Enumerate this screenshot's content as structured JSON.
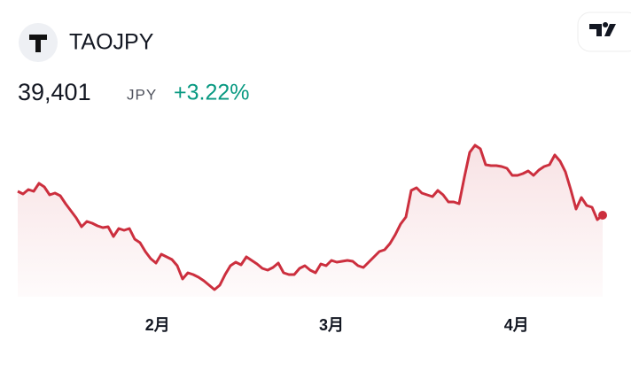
{
  "chart_data": {
    "type": "line",
    "title": "TAOJPY",
    "price": "39,401",
    "currency": "JPY",
    "change": "+3.22%",
    "series": [
      {
        "color": "#cc2f3e",
        "values": [
          43450,
          43000,
          43750,
          43450,
          44800,
          44200,
          42850,
          43150,
          42700,
          41350,
          40150,
          38950,
          37450,
          38350,
          38050,
          37600,
          37300,
          37450,
          35800,
          37150,
          36850,
          37150,
          35350,
          34750,
          33250,
          32050,
          31300,
          32800,
          32350,
          31900,
          30850,
          28600,
          29650,
          29350,
          28900,
          28300,
          27550,
          26800,
          27550,
          29350,
          30850,
          31450,
          31000,
          32350,
          31750,
          31150,
          30400,
          30100,
          30550,
          31300,
          29650,
          29350,
          29350,
          30400,
          30850,
          30100,
          29650,
          31150,
          30850,
          31750,
          31450,
          31600,
          31750,
          31600,
          30850,
          30550,
          31450,
          32350,
          33250,
          33550,
          34600,
          36100,
          37900,
          39100,
          43600,
          44050,
          43150,
          42850,
          42550,
          43600,
          42850,
          41650,
          41650,
          41350,
          45850,
          50050,
          51250,
          50650,
          47950,
          47800,
          47800,
          47650,
          47350,
          46150,
          46150,
          46450,
          46900,
          46150,
          47050,
          47650,
          47950,
          49600,
          48550,
          46750,
          43750,
          40450,
          42400,
          41050,
          40750,
          38650,
          39401
        ]
      }
    ],
    "xlim": [
      0,
      110
    ],
    "xticks": [
      {
        "value": 26.3,
        "label": "2月"
      },
      {
        "value": 59,
        "label": "3月"
      },
      {
        "value": 93.8,
        "label": "4月"
      }
    ],
    "ylim": [
      25600,
      53350
    ],
    "change_color": "#089981"
  }
}
